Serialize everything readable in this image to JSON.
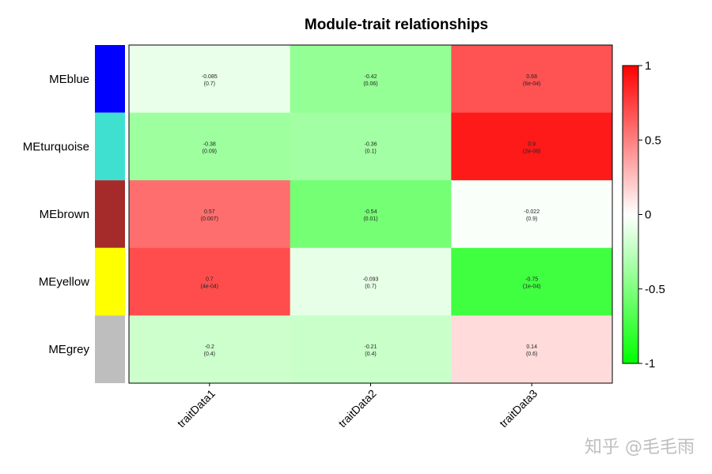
{
  "chart_data": {
    "type": "heatmap",
    "title": "Module-trait relationships",
    "rows": [
      {
        "label": "MEblue",
        "color": "#0000ff"
      },
      {
        "label": "MEturquoise",
        "color": "#40e0d0"
      },
      {
        "label": "MEbrown",
        "color": "#a52a2a"
      },
      {
        "label": "MEyellow",
        "color": "#ffff00"
      },
      {
        "label": "MEgrey",
        "color": "#bebebe"
      }
    ],
    "columns": [
      "traitData1",
      "traitData2",
      "traitData3"
    ],
    "values": [
      [
        -0.085,
        -0.42,
        0.68
      ],
      [
        -0.38,
        -0.36,
        0.9
      ],
      [
        0.57,
        -0.54,
        -0.022
      ],
      [
        0.7,
        -0.093,
        -0.75
      ],
      [
        -0.2,
        -0.21,
        0.14
      ]
    ],
    "cell_text": [
      [
        [
          "-0.085",
          "(0.7)"
        ],
        [
          "-0.42",
          "(0.06)"
        ],
        [
          "0.68",
          "(6e-04)"
        ]
      ],
      [
        [
          "-0.38",
          "(0.09)"
        ],
        [
          "-0.36",
          "(0.1)"
        ],
        [
          "0.9",
          "(2e-06)"
        ]
      ],
      [
        [
          "0.57",
          "(0.007)"
        ],
        [
          "-0.54",
          "(0.01)"
        ],
        [
          "-0.022",
          "(0.9)"
        ]
      ],
      [
        [
          "0.7",
          "(4e-04)"
        ],
        [
          "-0.093",
          "(0.7)"
        ],
        [
          "-0.75",
          "(1e-04)"
        ]
      ],
      [
        [
          "-0.2",
          "(0.4)"
        ],
        [
          "-0.21",
          "(0.4)"
        ],
        [
          "0.14",
          "(0.6)"
        ]
      ]
    ],
    "colorbar": {
      "range": [
        -1,
        1
      ],
      "ticks": [
        1,
        0.5,
        0,
        -0.5,
        -1
      ],
      "tick_labels": [
        "1",
        "0.5",
        "0",
        "-0.5",
        "-1"
      ],
      "low_color": "#00ff00",
      "mid_color": "#ffffff",
      "high_color": "#ff0000"
    }
  },
  "watermark": "知乎 @毛毛雨"
}
